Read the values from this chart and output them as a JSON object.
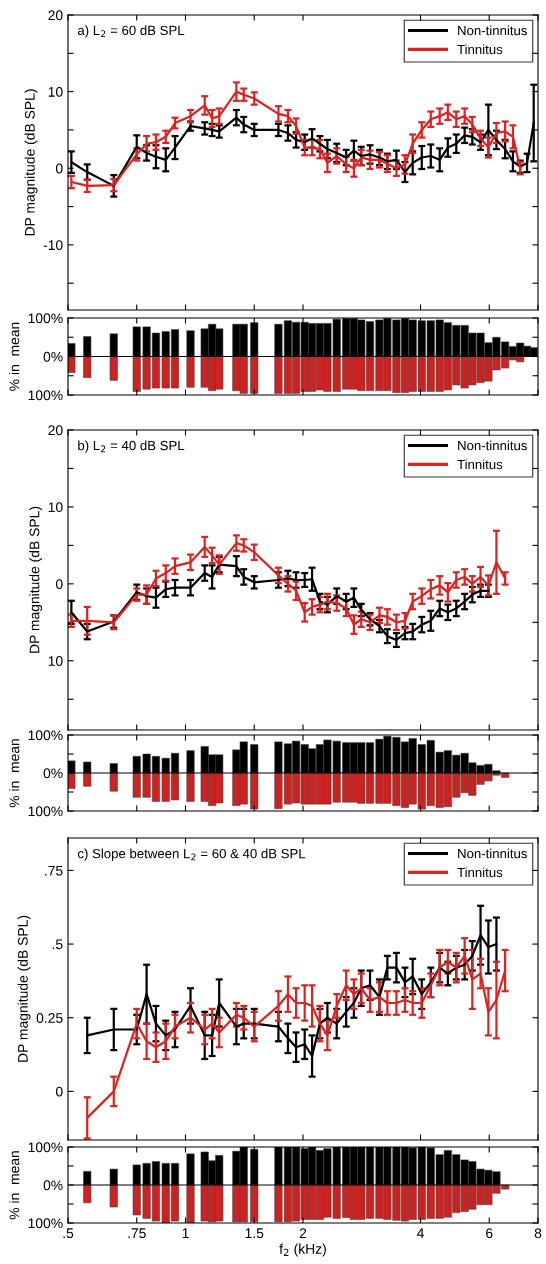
{
  "chart_data": [
    {
      "type": "line",
      "title": "a) L$_{2}$ = 60 dB SPL",
      "ylabel": "DP magnitude (dB SPL)",
      "log": "x",
      "legend": "top right",
      "tick_labels": "y",
      "x": [
        0.51,
        0.56,
        0.655,
        0.75,
        0.795,
        0.84,
        0.89,
        0.94,
        1.03,
        1.12,
        1.17,
        1.22,
        1.35,
        1.41,
        1.5,
        1.73,
        1.83,
        1.92,
        2.02,
        2.11,
        2.21,
        2.31,
        2.44,
        2.58,
        2.7,
        2.82,
        2.97,
        3.14,
        3.29,
        3.47,
        3.65,
        3.82,
        4.03,
        4.25,
        4.48,
        4.7,
        4.94,
        5.19,
        5.43,
        5.7,
        5.97,
        6.26,
        6.59,
        6.9,
        7.2,
        7.5,
        7.8
      ],
      "xlim": [
        0.5,
        8
      ],
      "xticks": [
        {
          "value": 0.5,
          "label": null
        },
        {
          "value": 0.75,
          "label": null
        },
        {
          "value": 1,
          "label": null
        },
        {
          "value": 1.5,
          "label": null
        },
        {
          "value": 2,
          "label": null
        },
        {
          "value": 4,
          "label": null
        },
        {
          "value": 6,
          "label": null
        },
        {
          "value": 8,
          "label": null
        }
      ],
      "ylim": [
        -18.5,
        20
      ],
      "yticks": [
        20,
        {
          "value": 15,
          "label": null
        },
        10,
        {
          "value": 5,
          "label": null
        },
        0,
        {
          "value": -5,
          "label": null
        },
        -10,
        {
          "value": -15,
          "label": null
        }
      ],
      "series": [
        {
          "name": "Non-tinnitus",
          "color": "#000000",
          "values": [
            0.8,
            -0.5,
            -2.3,
            2.8,
            2.0,
            1.5,
            1.1,
            2.7,
            5.5,
            5.2,
            5.0,
            4.8,
            6.6,
            5.7,
            5.0,
            5.0,
            4.6,
            3.7,
            3.4,
            3.9,
            3.2,
            2.5,
            2.0,
            1.4,
            2.3,
            1.6,
            1.8,
            1.4,
            0.9,
            1.1,
            -0.5,
            0.7,
            1.4,
            1.6,
            1.1,
            2.7,
            3.2,
            4.3,
            4.1,
            3.4,
            5.0,
            3.7,
            2.5,
            0.9,
            0.2,
            0.7,
            5.9
          ],
          "errors": [
            1.4,
            1.0,
            1.4,
            1.5,
            1.0,
            1.5,
            1.5,
            1.5,
            0.6,
            0.8,
            0.8,
            0.8,
            1.0,
            1.0,
            0.8,
            0.8,
            1.0,
            1.0,
            1.0,
            1.2,
            1.0,
            1.2,
            1.2,
            1.0,
            1.3,
            1.2,
            1.2,
            1.0,
            1.0,
            1.2,
            1.3,
            1.5,
            1.5,
            1.5,
            1.5,
            1.2,
            1.2,
            1.0,
            1.0,
            1.0,
            3.3,
            1.2,
            1.2,
            1.3,
            0.8,
            1.2,
            5.0
          ]
        },
        {
          "name": "Tinnitus",
          "color": "#dd2222",
          "values": [
            -1.8,
            -2.3,
            -2.2,
            1.8,
            3.2,
            3.4,
            4.1,
            5.9,
            6.8,
            8.2,
            6.5,
            6.8,
            10.0,
            9.6,
            9.1,
            7.1,
            6.8,
            5.5,
            2.7,
            2.7,
            2.5,
            0.7,
            1.6,
            0.5,
            0.0,
            1.4,
            1.1,
            1.1,
            0.6,
            0.0,
            0.5,
            3.2,
            5.0,
            6.4,
            6.8,
            7.3,
            6.4,
            6.8,
            5.7,
            3.9,
            2.7,
            4.6,
            4.8,
            4.1,
            0.0,
            null,
            null
          ],
          "errors": [
            0.8,
            0.8,
            0.8,
            0.8,
            1.0,
            1.0,
            0.8,
            0.7,
            0.8,
            1.2,
            1.1,
            1.0,
            1.2,
            0.8,
            0.8,
            1.0,
            0.8,
            1.0,
            1.0,
            1.0,
            1.2,
            1.2,
            1.0,
            1.0,
            1.1,
            1.0,
            1.2,
            1.0,
            1.1,
            1.0,
            1.2,
            1.2,
            1.0,
            1.0,
            1.0,
            1.0,
            1.0,
            1.0,
            1.0,
            1.0,
            1.3,
            1.3,
            1.3,
            1.5,
            0.8,
            null,
            null
          ]
        }
      ]
    },
    {
      "type": "bar",
      "stacked": true,
      "ylabel": "% in  mean",
      "log": "x",
      "tick_labels": "y",
      "x": [
        0.51,
        0.56,
        0.655,
        0.75,
        0.795,
        0.84,
        0.89,
        0.94,
        1.03,
        1.12,
        1.17,
        1.22,
        1.35,
        1.41,
        1.5,
        1.73,
        1.83,
        1.92,
        2.02,
        2.11,
        2.21,
        2.31,
        2.44,
        2.58,
        2.7,
        2.82,
        2.97,
        3.14,
        3.29,
        3.47,
        3.65,
        3.82,
        4.03,
        4.25,
        4.48,
        4.7,
        4.94,
        5.19,
        5.43,
        5.7,
        5.97,
        6.26,
        6.59,
        6.9,
        7.2,
        7.5,
        7.8
      ],
      "xlim": [
        0.5,
        8
      ],
      "xticks": [
        {
          "value": 0.5,
          "label": null
        },
        {
          "value": 0.75,
          "label": null
        },
        {
          "value": 1,
          "label": null
        },
        {
          "value": 1.5,
          "label": null
        },
        {
          "value": 2,
          "label": null
        },
        {
          "value": 4,
          "label": null
        },
        {
          "value": 6,
          "label": null
        },
        {
          "value": 8,
          "label": null
        }
      ],
      "ylim": [
        -100,
        100
      ],
      "yticks": [
        {
          "value": 100,
          "label": "100%"
        },
        {
          "value": 50,
          "label": null
        },
        {
          "value": 0,
          "label": "0%"
        },
        {
          "value": -50,
          "label": null
        },
        {
          "value": -100,
          "label": "100%"
        }
      ],
      "ref_lines": [
        {
          "axis": "y",
          "value": 0,
          "color": "#000000"
        }
      ],
      "series": [
        {
          "color": "#000000",
          "values": [
            34,
            52,
            59,
            77,
            77,
            61,
            65,
            70,
            67,
            72,
            84,
            72,
            84,
            84,
            88,
            84,
            93,
            89,
            89,
            86,
            86,
            86,
            97,
            99,
            99,
            95,
            91,
            95,
            99,
            95,
            99,
            95,
            93,
            93,
            95,
            88,
            81,
            81,
            61,
            61,
            36,
            50,
            38,
            26,
            35,
            27,
            23
          ]
        },
        {
          "color": "#cc2222",
          "values": [
            -42,
            -55,
            -62,
            -91,
            -85,
            -82,
            -82,
            -82,
            -80,
            -80,
            -89,
            -85,
            -89,
            -96,
            -96,
            -96,
            -96,
            -96,
            -91,
            -91,
            -87,
            -91,
            -91,
            -85,
            -85,
            -89,
            -89,
            -89,
            -89,
            -94,
            -94,
            -91,
            -91,
            -91,
            -91,
            -87,
            -74,
            -82,
            -74,
            -68,
            -64,
            -35,
            -30,
            -9,
            -14,
            null,
            null
          ]
        }
      ]
    },
    {
      "type": "line",
      "title": "b) L$_{2}$ = 40 dB SPL",
      "ylabel": "DP magnitude (dB SPL)",
      "log": "x",
      "legend": "top right",
      "tick_labels": "y",
      "x": [
        0.51,
        0.56,
        0.655,
        0.75,
        0.795,
        0.84,
        0.89,
        0.94,
        1.03,
        1.12,
        1.17,
        1.22,
        1.35,
        1.41,
        1.5,
        1.73,
        1.83,
        1.92,
        2.02,
        2.11,
        2.21,
        2.31,
        2.44,
        2.58,
        2.7,
        2.82,
        2.97,
        3.14,
        3.29,
        3.47,
        3.65,
        3.82,
        4.03,
        4.25,
        4.48,
        4.7,
        4.94,
        5.19,
        5.43,
        5.7,
        5.97,
        6.26,
        6.59
      ],
      "xlim": [
        0.5,
        8
      ],
      "xticks": [
        {
          "value": 0.5,
          "label": null
        },
        {
          "value": 0.75,
          "label": null
        },
        {
          "value": 1,
          "label": null
        },
        {
          "value": 1.5,
          "label": null
        },
        {
          "value": 2,
          "label": null
        },
        {
          "value": 4,
          "label": null
        },
        {
          "value": 6,
          "label": null
        },
        {
          "value": 8,
          "label": null
        }
      ],
      "ylim": [
        -19,
        20
      ],
      "yticks": [
        20,
        {
          "value": 15,
          "label": null
        },
        10,
        {
          "value": 5,
          "label": null
        },
        0,
        {
          "value": -5,
          "label": null
        },
        {
          "value": -10,
          "label": "10"
        },
        {
          "value": -15,
          "label": null
        }
      ],
      "series": [
        {
          "name": "Non-tinnitus",
          "color": "#000000",
          "values": [
            -3.7,
            -6.2,
            -4.9,
            -1.1,
            -1.6,
            -1.8,
            -0.7,
            -0.5,
            -0.5,
            1.4,
            0.9,
            2.5,
            2.3,
            0.9,
            0.2,
            0.5,
            0.7,
            0.5,
            0.5,
            0.6,
            -2.3,
            -2.7,
            -1.6,
            -2.3,
            -1.8,
            -3.4,
            -4.6,
            -5.5,
            -6.8,
            -7.3,
            -6.4,
            -6.2,
            -5.3,
            -4.8,
            -3.2,
            -3.7,
            -3.2,
            -2.3,
            -1.4,
            -0.9,
            -0.9,
            null,
            null
          ],
          "errors": [
            1.5,
            1.0,
            0.8,
            1.0,
            1.0,
            1.3,
            1.0,
            1.0,
            1.0,
            1.0,
            1.5,
            1.0,
            1.3,
            1.0,
            0.8,
            1.0,
            1.0,
            1.0,
            0.9,
            1.5,
            1.0,
            1.0,
            1.0,
            1.0,
            1.2,
            0.8,
            0.8,
            0.8,
            0.9,
            0.9,
            0.8,
            1.0,
            1.0,
            1.3,
            1.0,
            1.0,
            1.0,
            1.0,
            1.0,
            0.8,
            0.8,
            null,
            null
          ]
        },
        {
          "name": "Tinnitus",
          "color": "#dd2222",
          "values": [
            -4.8,
            -4.8,
            -5.0,
            -1.4,
            -1.4,
            0.7,
            1.4,
            2.3,
            2.8,
            4.8,
            3.7,
            2.5,
            5.3,
            5.0,
            4.1,
            1.1,
            0.0,
            -0.9,
            -3.7,
            -3.0,
            -2.7,
            -2.3,
            -2.5,
            -3.2,
            -5.3,
            -4.6,
            -5.0,
            -4.1,
            -4.3,
            -5.0,
            -4.8,
            -2.3,
            -1.6,
            -0.7,
            -0.2,
            -1.1,
            0.5,
            0.9,
            0.0,
            0.9,
            -0.2,
            2.8,
            0.7
          ],
          "errors": [
            0.8,
            1.8,
            0.9,
            0.8,
            1.2,
            1.0,
            1.0,
            1.0,
            1.0,
            1.3,
            1.0,
            1.2,
            1.0,
            0.8,
            1.0,
            1.0,
            1.0,
            1.2,
            1.2,
            1.0,
            1.0,
            1.0,
            1.0,
            1.0,
            1.2,
            1.0,
            1.0,
            1.0,
            1.0,
            1.0,
            1.0,
            1.0,
            1.0,
            1.2,
            1.2,
            1.2,
            1.0,
            1.0,
            1.0,
            1.3,
            1.3,
            4.1,
            0.8
          ]
        }
      ]
    },
    {
      "type": "bar",
      "stacked": true,
      "ylabel": "% in  mean",
      "log": "x",
      "tick_labels": "y",
      "x": [
        0.51,
        0.56,
        0.655,
        0.75,
        0.795,
        0.84,
        0.89,
        0.94,
        1.03,
        1.12,
        1.17,
        1.22,
        1.35,
        1.41,
        1.5,
        1.73,
        1.83,
        1.92,
        2.02,
        2.11,
        2.21,
        2.31,
        2.44,
        2.58,
        2.7,
        2.82,
        2.97,
        3.14,
        3.29,
        3.47,
        3.65,
        3.82,
        4.03,
        4.25,
        4.48,
        4.7,
        4.94,
        5.19,
        5.43,
        5.7,
        5.97,
        6.26,
        6.59
      ],
      "xlim": [
        0.5,
        8
      ],
      "xticks": [
        {
          "value": 0.5,
          "label": null
        },
        {
          "value": 0.75,
          "label": null
        },
        {
          "value": 1,
          "label": null
        },
        {
          "value": 1.5,
          "label": null
        },
        {
          "value": 2,
          "label": null
        },
        {
          "value": 4,
          "label": null
        },
        {
          "value": 6,
          "label": null
        },
        {
          "value": 8,
          "label": null
        }
      ],
      "ylim": [
        -100,
        100
      ],
      "yticks": [
        {
          "value": 100,
          "label": "100%"
        },
        {
          "value": 50,
          "label": null
        },
        {
          "value": 0,
          "label": "0%"
        },
        {
          "value": -50,
          "label": null
        },
        {
          "value": -100,
          "label": "100%"
        }
      ],
      "ref_lines": [
        {
          "axis": "y",
          "value": 0,
          "color": "#000000"
        }
      ],
      "series": [
        {
          "color": "#000000",
          "values": [
            32,
            29,
            25,
            44,
            50,
            44,
            39,
            52,
            59,
            70,
            48,
            48,
            61,
            82,
            75,
            82,
            77,
            84,
            75,
            64,
            75,
            87,
            84,
            80,
            80,
            80,
            80,
            89,
            97,
            94,
            82,
            91,
            75,
            86,
            55,
            59,
            47,
            52,
            27,
            20,
            23,
            6,
            null
          ]
        },
        {
          "color": "#cc2222",
          "values": [
            -41,
            -35,
            -48,
            -64,
            -64,
            -75,
            -75,
            -71,
            -75,
            -75,
            -86,
            -79,
            -86,
            -82,
            -95,
            -94,
            -82,
            -79,
            -82,
            -82,
            -82,
            -82,
            -77,
            -77,
            -77,
            -80,
            -80,
            -80,
            -80,
            -86,
            -91,
            -82,
            -95,
            -86,
            -91,
            -89,
            -64,
            -52,
            -59,
            -30,
            -21,
            -6,
            -12
          ]
        }
      ]
    },
    {
      "type": "line",
      "title": "c) Slope between L$_{2}$ = 60 & 40 dB SPL",
      "ylabel": "DP magnitude (dB SPL)",
      "log": "x",
      "legend": "top right",
      "tick_labels": "y",
      "x": [
        0.56,
        0.655,
        0.75,
        0.795,
        0.84,
        0.89,
        0.94,
        1.03,
        1.12,
        1.17,
        1.22,
        1.35,
        1.41,
        1.5,
        1.73,
        1.83,
        1.92,
        2.02,
        2.11,
        2.21,
        2.31,
        2.44,
        2.58,
        2.7,
        2.82,
        2.97,
        3.14,
        3.29,
        3.47,
        3.65,
        3.82,
        4.03,
        4.25,
        4.48,
        4.7,
        4.94,
        5.19,
        5.43,
        5.7,
        5.97,
        6.26,
        6.59
      ],
      "xlim": [
        0.5,
        8
      ],
      "xticks": [
        {
          "value": 0.5,
          "label": null
        },
        {
          "value": 0.75,
          "label": null
        },
        {
          "value": 1,
          "label": null
        },
        {
          "value": 1.5,
          "label": null
        },
        {
          "value": 2,
          "label": null
        },
        {
          "value": 4,
          "label": null
        },
        {
          "value": 6,
          "label": null
        },
        {
          "value": 8,
          "label": null
        }
      ],
      "ylim": [
        -0.165,
        0.86
      ],
      "yticks": [
        {
          "value": 0.75,
          "label": ".75"
        },
        {
          "value": 0.5,
          "label": ".5"
        },
        0.25,
        0
      ],
      "series": [
        {
          "name": "Non-tinnitus",
          "color": "#000000",
          "values": [
            0.19,
            0.21,
            0.21,
            0.33,
            0.23,
            0.19,
            0.21,
            0.29,
            0.19,
            0.19,
            0.3,
            0.22,
            0.23,
            0.23,
            0.22,
            0.18,
            0.15,
            0.16,
            0.12,
            0.23,
            0.25,
            0.23,
            0.27,
            0.3,
            0.35,
            0.36,
            0.32,
            0.42,
            0.42,
            0.37,
            0.39,
            0.33,
            0.37,
            0.42,
            0.4,
            0.42,
            0.43,
            0.46,
            0.53,
            0.49,
            0.5,
            null
          ],
          "errors": [
            0.06,
            0.07,
            0.05,
            0.1,
            0.06,
            0.05,
            0.06,
            0.06,
            0.08,
            0.07,
            0.08,
            0.06,
            0.05,
            0.05,
            0.05,
            0.05,
            0.05,
            0.05,
            0.07,
            0.05,
            0.05,
            0.05,
            0.05,
            0.05,
            0.06,
            0.05,
            0.06,
            0.04,
            0.05,
            0.05,
            0.06,
            0.05,
            0.05,
            0.05,
            0.04,
            0.04,
            0.05,
            0.05,
            0.1,
            0.09,
            0.09,
            null
          ]
        },
        {
          "name": "Tinnitus",
          "color": "#dd2222",
          "values": [
            -0.09,
            0.0,
            0.23,
            0.17,
            0.15,
            0.17,
            0.22,
            0.25,
            0.21,
            0.23,
            0.2,
            0.26,
            0.25,
            0.22,
            0.29,
            0.33,
            0.3,
            0.3,
            0.29,
            0.23,
            0.19,
            0.29,
            0.36,
            0.33,
            0.35,
            0.31,
            0.32,
            0.3,
            0.3,
            0.31,
            0.3,
            0.3,
            0.36,
            0.42,
            0.44,
            0.42,
            0.46,
            0.38,
            0.4,
            0.27,
            0.31,
            0.41
          ],
          "errors": [
            0.07,
            0.05,
            0.05,
            0.06,
            0.05,
            0.06,
            0.04,
            0.05,
            0.05,
            0.05,
            0.05,
            0.04,
            0.04,
            0.05,
            0.05,
            0.06,
            0.05,
            0.06,
            0.07,
            0.06,
            0.05,
            0.04,
            0.05,
            0.05,
            0.05,
            0.04,
            0.05,
            0.04,
            0.04,
            0.04,
            0.04,
            0.05,
            0.04,
            0.06,
            0.04,
            0.05,
            0.06,
            0.1,
            0.05,
            0.08,
            0.13,
            0.07
          ]
        }
      ]
    },
    {
      "type": "bar",
      "stacked": true,
      "ylabel": "% in  mean",
      "xlabel": "f$_{2}$ (kHz)",
      "log": "x",
      "x": [
        0.56,
        0.655,
        0.75,
        0.795,
        0.84,
        0.89,
        0.94,
        1.03,
        1.12,
        1.17,
        1.22,
        1.35,
        1.41,
        1.5,
        1.73,
        1.83,
        1.92,
        2.02,
        2.11,
        2.21,
        2.31,
        2.44,
        2.58,
        2.7,
        2.82,
        2.97,
        3.14,
        3.29,
        3.47,
        3.65,
        3.82,
        4.03,
        4.25,
        4.48,
        4.7,
        4.94,
        5.19,
        5.43,
        5.7,
        5.97,
        6.26,
        6.59
      ],
      "xlim": [
        0.5,
        8
      ],
      "xticks": [
        {
          "value": 0.5,
          "label": ".5"
        },
        {
          "value": 0.75,
          "label": ".75"
        },
        1,
        1.5,
        2,
        4,
        6,
        8
      ],
      "ylim": [
        -100,
        100
      ],
      "yticks": [
        {
          "value": 100,
          "label": "100%"
        },
        {
          "value": 50,
          "label": null
        },
        {
          "value": 0,
          "label": "0%"
        },
        {
          "value": -50,
          "label": null
        },
        {
          "value": -100,
          "label": "100%"
        }
      ],
      "ref_lines": [
        {
          "axis": "y",
          "value": 0,
          "color": "#000000"
        }
      ],
      "series": [
        {
          "color": "#000000",
          "values": [
            36,
            42,
            53,
            57,
            62,
            57,
            57,
            82,
            87,
            64,
            78,
            89,
            100,
            94,
            100,
            100,
            100,
            96,
            100,
            91,
            96,
            100,
            100,
            100,
            100,
            100,
            100,
            100,
            100,
            100,
            98,
            100,
            98,
            80,
            91,
            80,
            66,
            62,
            42,
            39,
            35,
            null
          ]
        },
        {
          "color": "#cc2222",
          "values": [
            -47,
            -58,
            -79,
            -88,
            -95,
            -100,
            -95,
            -100,
            -95,
            -97,
            -95,
            -97,
            -97,
            -97,
            -97,
            -97,
            -95,
            -91,
            -91,
            -91,
            -85,
            -88,
            -86,
            -91,
            -91,
            -88,
            -88,
            -91,
            -93,
            -95,
            -91,
            -91,
            -88,
            -88,
            -85,
            -73,
            -70,
            -64,
            -52,
            -52,
            -22,
            -11
          ]
        }
      ]
    }
  ]
}
